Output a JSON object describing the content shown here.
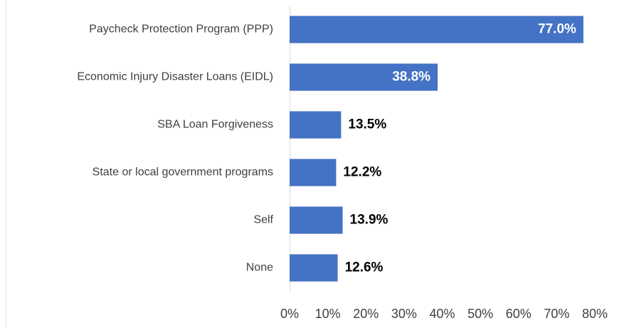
{
  "chart_data": {
    "type": "barh",
    "categories": [
      "Paycheck Protection Program (PPP)",
      "Economic Injury Disaster Loans (EIDL)",
      "SBA Loan Forgiveness",
      "State or local government programs",
      "Self",
      "None"
    ],
    "values": [
      77.0,
      38.8,
      13.5,
      12.2,
      13.9,
      12.6
    ],
    "value_labels": [
      "77.0%",
      "38.8%",
      "13.5%",
      "12.2%",
      "13.9%",
      "12.6%"
    ],
    "color": "#4472c4",
    "xlim": [
      0,
      80
    ],
    "xticks": [
      {
        "value": 0,
        "label": "0%"
      },
      {
        "value": 10,
        "label": "10%"
      },
      {
        "value": 20,
        "label": "20%"
      },
      {
        "value": 30,
        "label": "30%"
      },
      {
        "value": 40,
        "label": "40%"
      },
      {
        "value": 50,
        "label": "50%"
      },
      {
        "value": 60,
        "label": "60%"
      },
      {
        "value": 70,
        "label": "70%"
      },
      {
        "value": 80,
        "label": "80%"
      }
    ],
    "grid": false
  }
}
